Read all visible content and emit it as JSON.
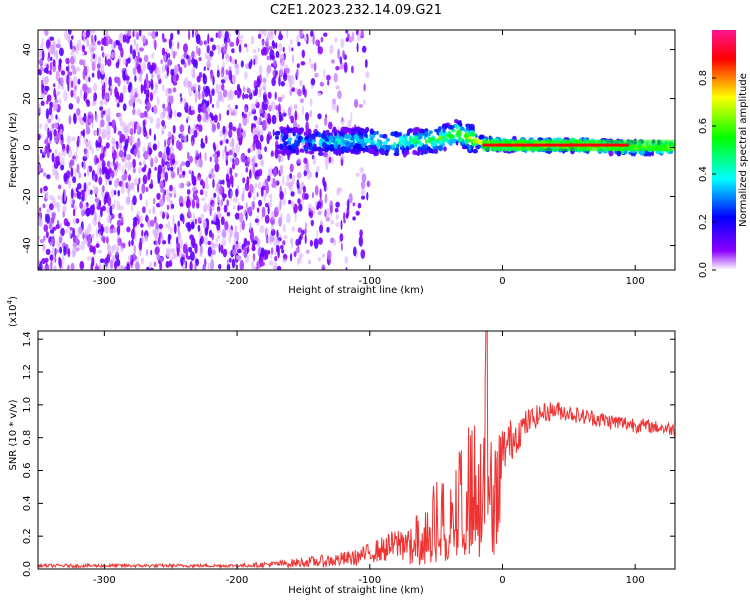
{
  "title": "C2E1.2023.232.14.09.G21",
  "chart_data": [
    {
      "type": "heatmap",
      "xlabel": "Height of straight line (km)",
      "ylabel": "Frequency (Hz)",
      "xlim": [
        -350,
        130
      ],
      "ylim": [
        -50,
        48
      ],
      "x_ticks": [
        -300,
        -200,
        -100,
        0,
        100
      ],
      "x_tick_labels": [
        "-300",
        "-200",
        "-100",
        "0",
        "100"
      ],
      "y_ticks": [
        -40,
        -20,
        0,
        20,
        40
      ],
      "y_tick_labels": [
        "-40",
        "-20",
        "0",
        "20",
        "40"
      ],
      "colorbar": {
        "label": "Normalized spectral amplitude",
        "range": [
          0,
          1
        ],
        "ticks": [
          0.0,
          0.2,
          0.4,
          0.6,
          0.8
        ],
        "tick_labels": [
          "0.0",
          "0.2",
          "0.4",
          "0.6",
          "0.8"
        ],
        "colormap": [
          "#ffffff",
          "#8b00ff",
          "#0000ff",
          "#00ffff",
          "#00ff00",
          "#ffff00",
          "#ff0000",
          "#ff1493"
        ]
      },
      "noise_region_x": [
        -350,
        -110
      ],
      "signal_start_x": -170,
      "ridge": {
        "x": [
          -170,
          -140,
          -110,
          -80,
          -50,
          -35,
          -25,
          -15,
          0,
          30,
          60,
          90,
          130
        ],
        "frequency": [
          3,
          2,
          3,
          2,
          3,
          6,
          4,
          2,
          1,
          1,
          1,
          0,
          0
        ],
        "amplitude": [
          0.3,
          0.35,
          0.4,
          0.45,
          0.55,
          0.6,
          0.65,
          0.7,
          0.8,
          0.85,
          0.85,
          0.7,
          0.65
        ]
      },
      "grid": false
    },
    {
      "type": "line",
      "xlabel": "Height of straight line (km)",
      "ylabel": "SNR (10 * v/v)",
      "y_unit_label": "(x10",
      "y_unit_exponent": "4",
      "xlim": [
        -350,
        130
      ],
      "ylim": [
        0,
        1.45
      ],
      "x_ticks": [
        -300,
        -200,
        -100,
        0,
        100
      ],
      "x_tick_labels": [
        "-300",
        "-200",
        "-100",
        "0",
        "100"
      ],
      "y_ticks": [
        0.0,
        0.2,
        0.4,
        0.6,
        0.8,
        1.0,
        1.2,
        1.4
      ],
      "y_tick_labels": [
        "0.0",
        "0.2",
        "0.4",
        "0.6",
        "0.8",
        "1.0",
        "1.2",
        "1.4"
      ],
      "color": "#ee3333",
      "series": [
        {
          "x": [
            -350,
            -300,
            -250,
            -200,
            -170,
            -150,
            -130,
            -110,
            -100,
            -90,
            -80,
            -70,
            -60,
            -50,
            -40,
            -30,
            -25,
            -20,
            -15,
            -12,
            -10,
            -5,
            0,
            10,
            20,
            30,
            40,
            50,
            60,
            70,
            80,
            90,
            100,
            110,
            120,
            130
          ],
          "values": [
            0.02,
            0.02,
            0.02,
            0.02,
            0.03,
            0.04,
            0.05,
            0.07,
            0.1,
            0.12,
            0.15,
            0.18,
            0.25,
            0.32,
            0.42,
            0.55,
            0.6,
            0.62,
            0.6,
            1.45,
            0.5,
            0.65,
            0.72,
            0.82,
            0.9,
            0.95,
            0.97,
            0.95,
            0.93,
            0.92,
            0.9,
            0.89,
            0.88,
            0.87,
            0.86,
            0.85
          ],
          "spread": [
            0.01,
            0.01,
            0.01,
            0.01,
            0.02,
            0.03,
            0.04,
            0.05,
            0.06,
            0.08,
            0.1,
            0.14,
            0.18,
            0.22,
            0.25,
            0.28,
            0.3,
            0.3,
            0.3,
            0.3,
            0.28,
            0.22,
            0.16,
            0.12,
            0.08,
            0.06,
            0.06,
            0.05,
            0.05,
            0.05,
            0.05,
            0.05,
            0.05,
            0.04,
            0.04,
            0.04
          ]
        }
      ],
      "grid": false
    }
  ]
}
